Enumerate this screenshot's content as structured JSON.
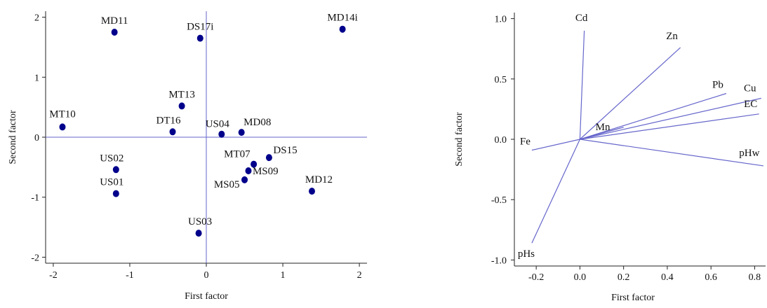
{
  "colors": {
    "axis": "#222222",
    "refline": "#6666cc",
    "point": "#00008b",
    "vector": "#6666cc",
    "text": "#111111"
  },
  "chart_data": [
    {
      "type": "scatter",
      "xlabel": "First factor",
      "ylabel": "Second factor",
      "xlim": [
        -2.1,
        2.1
      ],
      "ylim": [
        -2.1,
        2.1
      ],
      "xticks": [
        -2,
        -1,
        0,
        1,
        2
      ],
      "yticks": [
        -2,
        -1,
        0,
        1,
        2
      ],
      "reference_lines": {
        "x": 0,
        "y": 0
      },
      "points": [
        {
          "label": "MD11",
          "x": -1.2,
          "y": 1.75
        },
        {
          "label": "DS17i",
          "x": -0.08,
          "y": 1.65
        },
        {
          "label": "MD14i",
          "x": 1.78,
          "y": 1.8
        },
        {
          "label": "MT13",
          "x": -0.32,
          "y": 0.52
        },
        {
          "label": "MT10",
          "x": -1.88,
          "y": 0.17
        },
        {
          "label": "DT16",
          "x": -0.44,
          "y": 0.09
        },
        {
          "label": "US04",
          "x": 0.2,
          "y": 0.05
        },
        {
          "label": "MD08",
          "x": 0.46,
          "y": 0.08
        },
        {
          "label": "DS15",
          "x": 0.82,
          "y": -0.34
        },
        {
          "label": "MT07",
          "x": 0.62,
          "y": -0.45
        },
        {
          "label": "MS09",
          "x": 0.55,
          "y": -0.56
        },
        {
          "label": "MS05",
          "x": 0.5,
          "y": -0.71
        },
        {
          "label": "US02",
          "x": -1.18,
          "y": -0.54
        },
        {
          "label": "US01",
          "x": -1.18,
          "y": -0.94
        },
        {
          "label": "MD12",
          "x": 1.38,
          "y": -0.9
        },
        {
          "label": "US03",
          "x": -0.1,
          "y": -1.6
        }
      ]
    },
    {
      "type": "biplot",
      "xlabel": "First factor",
      "ylabel": "Second factor",
      "xlim": [
        -0.3,
        0.85
      ],
      "ylim": [
        -1.05,
        1.05
      ],
      "xticks": [
        "-0.2",
        "0.0",
        "0.2",
        "0.4",
        "0.6",
        "0.8"
      ],
      "yticks": [
        "-1.0",
        "-0.5",
        "0.0",
        "0.5",
        "1.0"
      ],
      "vectors": [
        {
          "label": "Cd",
          "x": 0.02,
          "y": 0.9
        },
        {
          "label": "Zn",
          "x": 0.46,
          "y": 0.76
        },
        {
          "label": "Pb",
          "x": 0.67,
          "y": 0.38
        },
        {
          "label": "Cu",
          "x": 0.83,
          "y": 0.34
        },
        {
          "label": "EC",
          "x": 0.82,
          "y": 0.21
        },
        {
          "label": "Mn",
          "x": 0.2,
          "y": 0.1
        },
        {
          "label": "Fe",
          "x": -0.22,
          "y": -0.09
        },
        {
          "label": "pHw",
          "x": 0.84,
          "y": -0.22
        },
        {
          "label": "pHs",
          "x": -0.22,
          "y": -0.86
        }
      ]
    }
  ]
}
